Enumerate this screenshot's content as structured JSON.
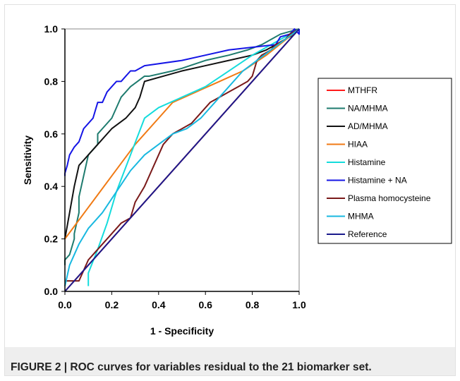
{
  "caption": "FIGURE 2 | ROC curves for variables residual to the 21 biomarker set.",
  "chart_data": {
    "type": "line",
    "xlabel": "1 - Specificity",
    "ylabel": "Sensitivity",
    "xlim": [
      0,
      1
    ],
    "ylim": [
      0,
      1
    ],
    "xticks": [
      "0.0",
      "0.2",
      "0.4",
      "0.6",
      "0.8",
      "1.0"
    ],
    "yticks": [
      "0.0",
      "0.2",
      "0.4",
      "0.6",
      "0.8",
      "1.0"
    ],
    "grid": false,
    "legend_position": "right",
    "series": [
      {
        "name": "MTHFR",
        "color": "#ff1a1a",
        "x": [
          0,
          1
        ],
        "y": [
          0,
          1
        ]
      },
      {
        "name": "NA/MHMA",
        "color": "#1e7b6e",
        "x": [
          0,
          0,
          0.02,
          0.04,
          0.04,
          0.06,
          0.06,
          0.08,
          0.1,
          0.14,
          0.14,
          0.16,
          0.2,
          0.24,
          0.28,
          0.34,
          0.36,
          0.46,
          0.5,
          0.6,
          0.7,
          0.78,
          0.84,
          0.88,
          0.92,
          0.96,
          1.0
        ],
        "y": [
          0.1,
          0.12,
          0.14,
          0.2,
          0.22,
          0.3,
          0.36,
          0.44,
          0.52,
          0.56,
          0.6,
          0.62,
          0.66,
          0.74,
          0.78,
          0.82,
          0.82,
          0.84,
          0.85,
          0.88,
          0.9,
          0.92,
          0.94,
          0.96,
          0.98,
          0.99,
          1.0
        ]
      },
      {
        "name": "AD/MHMA",
        "color": "#111111",
        "x": [
          0,
          0.02,
          0.04,
          0.06,
          0.08,
          0.1,
          0.14,
          0.2,
          0.26,
          0.3,
          0.32,
          0.34,
          0.42,
          0.5,
          0.6,
          0.7,
          0.8,
          0.86,
          0.9,
          0.94,
          0.98,
          1.0
        ],
        "y": [
          0.2,
          0.3,
          0.4,
          0.48,
          0.5,
          0.52,
          0.56,
          0.62,
          0.66,
          0.7,
          0.74,
          0.8,
          0.82,
          0.84,
          0.86,
          0.88,
          0.9,
          0.92,
          0.94,
          0.96,
          0.98,
          1.0
        ]
      },
      {
        "name": "HIAA",
        "color": "#f07a14",
        "x": [
          0,
          0.1,
          0.2,
          0.3,
          0.4,
          0.46,
          0.56,
          0.66,
          0.76,
          0.86,
          1.0
        ],
        "y": [
          0.2,
          0.32,
          0.44,
          0.56,
          0.66,
          0.72,
          0.76,
          0.8,
          0.84,
          0.9,
          1.0
        ]
      },
      {
        "name": "Histamine",
        "color": "#14dcdc",
        "x": [
          0.1,
          0.1,
          0.14,
          0.18,
          0.22,
          0.28,
          0.34,
          0.4,
          0.5,
          0.6,
          0.7,
          0.8,
          0.9,
          1.0
        ],
        "y": [
          0.02,
          0.07,
          0.16,
          0.26,
          0.38,
          0.52,
          0.66,
          0.7,
          0.74,
          0.78,
          0.84,
          0.9,
          0.95,
          1.0
        ]
      },
      {
        "name": "Histamine + NA",
        "color": "#1515e6",
        "x": [
          0,
          0,
          0.01,
          0.02,
          0.04,
          0.06,
          0.08,
          0.1,
          0.12,
          0.14,
          0.16,
          0.18,
          0.2,
          0.22,
          0.24,
          0.26,
          0.28,
          0.3,
          0.34,
          0.5,
          0.6,
          0.7,
          0.8,
          0.9,
          0.92,
          0.96,
          0.98,
          1.0,
          1.0
        ],
        "y": [
          0.44,
          0.45,
          0.48,
          0.52,
          0.55,
          0.57,
          0.62,
          0.64,
          0.66,
          0.72,
          0.72,
          0.76,
          0.78,
          0.8,
          0.8,
          0.82,
          0.84,
          0.84,
          0.86,
          0.88,
          0.9,
          0.92,
          0.93,
          0.94,
          0.97,
          0.98,
          1.0,
          0.98,
          1.0
        ]
      },
      {
        "name": "Plasma homocysteine",
        "color": "#7a1a1a",
        "x": [
          0,
          0.02,
          0.06,
          0.08,
          0.1,
          0.12,
          0.16,
          0.2,
          0.24,
          0.28,
          0.3,
          0.34,
          0.38,
          0.42,
          0.46,
          0.5,
          0.54,
          0.58,
          0.62,
          0.66,
          0.7,
          0.74,
          0.78,
          0.8,
          0.82,
          0.84,
          0.88,
          0.9,
          0.94,
          0.96,
          1.0
        ],
        "y": [
          0.04,
          0.04,
          0.04,
          0.08,
          0.12,
          0.14,
          0.18,
          0.22,
          0.26,
          0.28,
          0.34,
          0.4,
          0.48,
          0.56,
          0.6,
          0.62,
          0.64,
          0.68,
          0.72,
          0.74,
          0.76,
          0.78,
          0.8,
          0.82,
          0.88,
          0.9,
          0.92,
          0.94,
          0.96,
          0.98,
          1.0
        ]
      },
      {
        "name": "MHMA",
        "color": "#18b8e0",
        "x": [
          0,
          0.02,
          0.06,
          0.1,
          0.16,
          0.22,
          0.28,
          0.34,
          0.4,
          0.46,
          0.52,
          0.58,
          0.64,
          0.7,
          0.76,
          0.82,
          0.88,
          0.94,
          1.0
        ],
        "y": [
          0.02,
          0.1,
          0.18,
          0.24,
          0.3,
          0.38,
          0.46,
          0.52,
          0.56,
          0.6,
          0.62,
          0.66,
          0.72,
          0.78,
          0.84,
          0.88,
          0.92,
          0.96,
          1.0
        ]
      },
      {
        "name": "Reference",
        "color": "#1a1a8c",
        "x": [
          0,
          1
        ],
        "y": [
          0,
          1
        ]
      }
    ]
  }
}
